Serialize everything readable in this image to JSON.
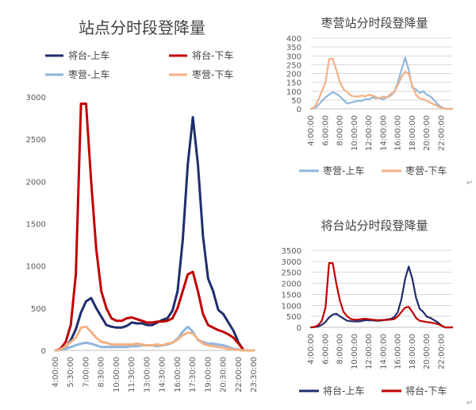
{
  "colors": {
    "jt_up": "#1f2d6e",
    "jt_down": "#c00000",
    "zy_up": "#8fb6dd",
    "zy_down": "#f4b183",
    "grid": "#d9d9d9",
    "text": "#404040"
  },
  "chart_data": [
    {
      "id": "main",
      "type": "line",
      "title": "站点分时段登降量",
      "x": [
        "4:00:00",
        "4:30:00",
        "5:00:00",
        "5:30:00",
        "6:00:00",
        "6:30:00",
        "7:00:00",
        "7:30:00",
        "8:00:00",
        "8:30:00",
        "9:00:00",
        "9:30:00",
        "10:00:00",
        "10:30:00",
        "11:00:00",
        "11:30:00",
        "12:00:00",
        "12:30:00",
        "13:00:00",
        "13:30:00",
        "14:00:00",
        "14:30:00",
        "15:00:00",
        "15:30:00",
        "16:00:00",
        "16:30:00",
        "17:00:00",
        "17:30:00",
        "18:00:00",
        "18:30:00",
        "19:00:00",
        "19:30:00",
        "20:00:00",
        "20:30:00",
        "21:00:00",
        "21:30:00",
        "22:00:00",
        "22:30:00",
        "23:00:00",
        "23:30:00"
      ],
      "x_tick_labels": [
        "4:00:00",
        "5:30:00",
        "7:00:00",
        "8:30:00",
        "10:00:00",
        "11:30:00",
        "13:00:00",
        "14:30:00",
        "16:00:00",
        "17:30:00",
        "19:00:00",
        "20:30:00",
        "22:00:00",
        "23:30:00"
      ],
      "ylim": [
        0,
        3000
      ],
      "y_ticks": [
        0,
        500,
        1000,
        1500,
        2000,
        2500,
        3000
      ],
      "grid": false,
      "legend": "top, 2 columns",
      "series": [
        {
          "key": "jt_up",
          "name": "将台-上车",
          "values": [
            0,
            10,
            40,
            120,
            250,
            450,
            580,
            620,
            500,
            400,
            300,
            280,
            270,
            270,
            290,
            330,
            320,
            320,
            300,
            300,
            330,
            360,
            380,
            470,
            700,
            1300,
            2200,
            2760,
            2200,
            1350,
            850,
            700,
            480,
            430,
            330,
            230,
            90,
            0,
            0,
            0
          ]
        },
        {
          "key": "jt_down",
          "name": "将台-下车",
          "values": [
            0,
            20,
            100,
            300,
            900,
            2920,
            2920,
            2000,
            1200,
            700,
            500,
            380,
            350,
            350,
            380,
            390,
            370,
            350,
            330,
            330,
            340,
            340,
            350,
            380,
            500,
            700,
            900,
            930,
            700,
            430,
            300,
            270,
            240,
            220,
            190,
            150,
            80,
            0,
            0,
            0
          ]
        },
        {
          "key": "zy_up",
          "name": "枣营-上车",
          "values": [
            0,
            5,
            20,
            40,
            60,
            80,
            90,
            80,
            60,
            40,
            40,
            40,
            40,
            40,
            40,
            50,
            50,
            60,
            60,
            60,
            50,
            60,
            70,
            90,
            140,
            220,
            280,
            220,
            120,
            100,
            80,
            80,
            70,
            60,
            40,
            20,
            10,
            0,
            0,
            0
          ]
        },
        {
          "key": "zy_down",
          "name": "枣营-下车",
          "values": [
            0,
            10,
            50,
            100,
            150,
            270,
            280,
            220,
            150,
            100,
            90,
            70,
            70,
            70,
            70,
            70,
            80,
            70,
            60,
            60,
            70,
            60,
            80,
            90,
            130,
            180,
            210,
            200,
            130,
            80,
            60,
            50,
            40,
            30,
            20,
            10,
            5,
            0,
            0,
            0
          ]
        }
      ]
    },
    {
      "id": "zaoying",
      "type": "line",
      "title": "枣营站分时段登降量",
      "x": [
        "4:00:00",
        "4:30:00",
        "5:00:00",
        "5:30:00",
        "6:00:00",
        "6:30:00",
        "7:00:00",
        "7:30:00",
        "8:00:00",
        "8:30:00",
        "9:00:00",
        "9:30:00",
        "10:00:00",
        "10:30:00",
        "11:00:00",
        "11:30:00",
        "12:00:00",
        "12:30:00",
        "13:00:00",
        "13:30:00",
        "14:00:00",
        "14:30:00",
        "15:00:00",
        "15:30:00",
        "16:00:00",
        "16:30:00",
        "17:00:00",
        "17:30:00",
        "18:00:00",
        "18:30:00",
        "19:00:00",
        "19:30:00",
        "20:00:00",
        "20:30:00",
        "21:00:00",
        "21:30:00",
        "22:00:00",
        "22:30:00",
        "23:00:00",
        "23:30:00"
      ],
      "x_tick_labels": [
        "4:00:00",
        "6:00:00",
        "8:00:00",
        "10:00:00",
        "12:00:00",
        "14:00:00",
        "16:00:00",
        "18:00:00",
        "20:00:00",
        "22:00:00"
      ],
      "ylim": [
        0,
        400
      ],
      "y_ticks": [
        0,
        50,
        100,
        150,
        200,
        250,
        300,
        350,
        400
      ],
      "grid": true,
      "legend": "bottom",
      "series": [
        {
          "key": "zy_up",
          "name": "枣营-上车",
          "values": [
            0,
            5,
            20,
            45,
            65,
            80,
            95,
            85,
            70,
            50,
            30,
            35,
            40,
            45,
            45,
            55,
            55,
            65,
            60,
            60,
            55,
            65,
            75,
            95,
            150,
            220,
            290,
            220,
            120,
            110,
            90,
            100,
            80,
            70,
            50,
            25,
            10,
            0,
            0,
            0
          ]
        },
        {
          "key": "zy_down",
          "name": "枣营-下车",
          "values": [
            0,
            10,
            50,
            100,
            150,
            280,
            285,
            220,
            150,
            110,
            95,
            75,
            70,
            70,
            75,
            70,
            80,
            75,
            65,
            60,
            70,
            65,
            85,
            95,
            135,
            180,
            210,
            200,
            130,
            80,
            60,
            55,
            45,
            35,
            25,
            15,
            5,
            0,
            0,
            0
          ]
        }
      ]
    },
    {
      "id": "jiangtai",
      "type": "line",
      "title": "将台站分时段登降量",
      "x": [
        "4:00:00",
        "4:30:00",
        "5:00:00",
        "5:30:00",
        "6:00:00",
        "6:30:00",
        "7:00:00",
        "7:30:00",
        "8:00:00",
        "8:30:00",
        "9:00:00",
        "9:30:00",
        "10:00:00",
        "10:30:00",
        "11:00:00",
        "11:30:00",
        "12:00:00",
        "12:30:00",
        "13:00:00",
        "13:30:00",
        "14:00:00",
        "14:30:00",
        "15:00:00",
        "15:30:00",
        "16:00:00",
        "16:30:00",
        "17:00:00",
        "17:30:00",
        "18:00:00",
        "18:30:00",
        "19:00:00",
        "19:30:00",
        "20:00:00",
        "20:30:00",
        "21:00:00",
        "21:30:00",
        "22:00:00",
        "22:30:00",
        "23:00:00",
        "23:30:00"
      ],
      "x_tick_labels": [
        "4:00:00",
        "6:00:00",
        "8:00:00",
        "10:00:00",
        "12:00:00",
        "14:00:00",
        "16:00:00",
        "18:00:00",
        "20:00:00",
        "22:00:00"
      ],
      "ylim": [
        0,
        3500
      ],
      "y_ticks": [
        0,
        500,
        1000,
        1500,
        2000,
        2500,
        3000,
        3500
      ],
      "grid": true,
      "legend": "bottom",
      "series": [
        {
          "key": "jt_up",
          "name": "将台-上车",
          "values": [
            0,
            10,
            40,
            120,
            250,
            450,
            580,
            620,
            500,
            400,
            300,
            280,
            270,
            270,
            290,
            330,
            320,
            320,
            300,
            300,
            330,
            360,
            380,
            470,
            700,
            1300,
            2200,
            2760,
            2200,
            1350,
            850,
            700,
            480,
            430,
            330,
            230,
            90,
            0,
            0,
            0
          ]
        },
        {
          "key": "jt_down",
          "name": "将台-下车",
          "values": [
            0,
            20,
            100,
            300,
            900,
            2920,
            2920,
            2000,
            1200,
            700,
            500,
            380,
            350,
            350,
            380,
            390,
            370,
            350,
            330,
            330,
            340,
            340,
            350,
            380,
            500,
            700,
            900,
            930,
            700,
            430,
            300,
            270,
            240,
            220,
            190,
            150,
            80,
            0,
            0,
            0
          ]
        }
      ]
    }
  ]
}
